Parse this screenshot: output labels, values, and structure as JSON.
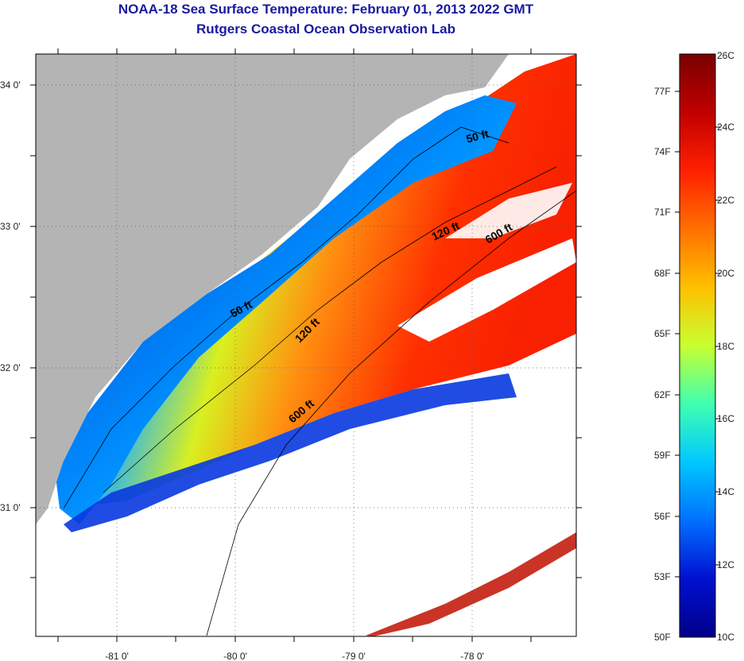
{
  "header": {
    "title": "NOAA-18 Sea Surface Temperature:  February 01, 2013 2022 GMT",
    "subtitle": "Rutgers Coastal Ocean Observation Lab"
  },
  "map": {
    "lat_labels": [
      "34 0'",
      "33 0'",
      "32 0'",
      "31 0'"
    ],
    "lon_labels": [
      "-81 0'",
      "-80 0'",
      "-79 0'",
      "-78 0'"
    ],
    "contour_labels": [
      {
        "id": "c50a",
        "text": "50 ft"
      },
      {
        "id": "c50b",
        "text": "50 ft"
      },
      {
        "id": "c120a",
        "text": "120 ft"
      },
      {
        "id": "c120b",
        "text": "120 ft"
      },
      {
        "id": "c600a",
        "text": "600 ft"
      },
      {
        "id": "c600b",
        "text": "600 ft"
      }
    ]
  },
  "colorbar": {
    "fahrenheit_labels": [
      "77F",
      "74F",
      "71F",
      "68F",
      "65F",
      "62F",
      "59F",
      "56F",
      "53F",
      "50F"
    ],
    "celsius_labels": [
      "26C",
      "24C",
      "22C",
      "20C",
      "18C",
      "16C",
      "14C",
      "12C",
      "10C"
    ],
    "colors": [
      "#7a0000",
      "#c80000",
      "#ff3000",
      "#ff8000",
      "#ffd000",
      "#c8ff30",
      "#40ffb0",
      "#00c8ff",
      "#0070ff",
      "#0010d0",
      "#00008a"
    ]
  }
}
